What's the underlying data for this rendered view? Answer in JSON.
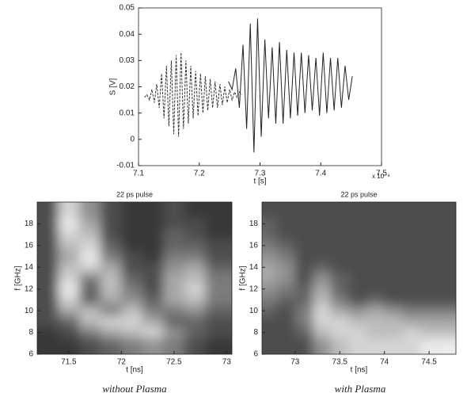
{
  "chart_data": [
    {
      "type": "line",
      "x_label": "t [s]",
      "y_label": "S [V]",
      "x_multiplier": "x 10⁻⁸",
      "xlim": [
        7.1,
        7.5
      ],
      "xticks": [
        7.1,
        7.2,
        7.3,
        7.4,
        7.5
      ],
      "ylim": [
        -0.01,
        0.05
      ],
      "yticks": [
        -0.01,
        0,
        0.01,
        0.02,
        0.03,
        0.04,
        0.05
      ],
      "series": [
        {
          "color": "#333333",
          "line_style": "dashed",
          "x": [
            7.11,
            7.114,
            7.118,
            7.122,
            7.126,
            7.13,
            7.134,
            7.138,
            7.142,
            7.146,
            7.15,
            7.154,
            7.158,
            7.162,
            7.166,
            7.17,
            7.174,
            7.178,
            7.182,
            7.186,
            7.19,
            7.194,
            7.198,
            7.202,
            7.206,
            7.21,
            7.214,
            7.218,
            7.222,
            7.226,
            7.23,
            7.234,
            7.238,
            7.242,
            7.246,
            7.25,
            7.254,
            7.258,
            7.262,
            7.266,
            7.27
          ],
          "values": [
            0.016,
            0.017,
            0.015,
            0.019,
            0.014,
            0.021,
            0.012,
            0.025,
            0.008,
            0.028,
            0.005,
            0.03,
            0.002,
            0.032,
            0.001,
            0.033,
            0.004,
            0.03,
            0.006,
            0.028,
            0.008,
            0.026,
            0.009,
            0.025,
            0.01,
            0.024,
            0.011,
            0.023,
            0.012,
            0.022,
            0.012,
            0.021,
            0.013,
            0.02,
            0.014,
            0.019,
            0.015,
            0.018,
            0.016,
            0.018,
            0.017
          ]
        },
        {
          "color": "#222222",
          "line_style": "solid",
          "x": [
            7.248,
            7.254,
            7.26,
            7.266,
            7.272,
            7.278,
            7.284,
            7.29,
            7.296,
            7.302,
            7.308,
            7.314,
            7.32,
            7.326,
            7.332,
            7.338,
            7.344,
            7.35,
            7.356,
            7.362,
            7.368,
            7.374,
            7.38,
            7.386,
            7.392,
            7.398,
            7.404,
            7.41,
            7.416,
            7.422,
            7.428,
            7.434,
            7.44,
            7.446,
            7.452
          ],
          "values": [
            0.022,
            0.019,
            0.027,
            0.012,
            0.036,
            0.004,
            0.044,
            -0.005,
            0.046,
            0.001,
            0.038,
            0.008,
            0.035,
            0.006,
            0.037,
            0.006,
            0.034,
            0.008,
            0.033,
            0.009,
            0.033,
            0.01,
            0.032,
            0.011,
            0.031,
            0.009,
            0.033,
            0.01,
            0.031,
            0.011,
            0.031,
            0.012,
            0.028,
            0.015,
            0.024
          ]
        }
      ]
    },
    {
      "type": "heatmap",
      "title": "22 ps pulse",
      "x_label": "t [ns]",
      "y_label": "f [GHz]",
      "caption": "without Plasma",
      "xlim": [
        71.2,
        73.05
      ],
      "xticks": [
        71.5,
        72,
        72.5,
        73
      ],
      "ylim": [
        6,
        20
      ],
      "yticks": [
        6,
        8,
        10,
        12,
        14,
        16,
        18
      ],
      "x": [
        71.3,
        71.5,
        71.7,
        71.9,
        72.1,
        72.3,
        72.5,
        72.7,
        72.9
      ],
      "y": [
        19,
        18,
        17,
        16,
        15,
        14,
        13,
        12,
        11,
        10,
        9,
        8,
        7
      ],
      "z": [
        [
          1,
          7,
          4,
          1,
          0,
          0,
          1,
          0,
          0
        ],
        [
          1,
          8,
          5,
          1,
          0,
          0,
          1,
          1,
          0
        ],
        [
          1,
          7,
          6,
          1,
          0,
          0,
          2,
          1,
          0
        ],
        [
          1,
          6,
          7,
          2,
          0,
          0,
          2,
          2,
          1
        ],
        [
          1,
          5,
          8,
          3,
          1,
          0,
          3,
          3,
          1
        ],
        [
          1,
          6,
          7,
          5,
          1,
          1,
          4,
          5,
          2
        ],
        [
          1,
          7,
          3,
          6,
          2,
          1,
          5,
          6,
          3
        ],
        [
          1,
          8,
          2,
          6,
          3,
          1,
          5,
          7,
          3
        ],
        [
          1,
          7,
          2,
          5,
          4,
          2,
          5,
          6,
          3
        ],
        [
          1,
          5,
          6,
          3,
          6,
          3,
          3,
          4,
          2
        ],
        [
          1,
          2,
          6,
          7,
          7,
          5,
          2,
          2,
          1
        ],
        [
          0,
          1,
          3,
          5,
          6,
          7,
          4,
          2,
          1
        ],
        [
          0,
          0,
          1,
          2,
          3,
          4,
          3,
          1,
          0
        ]
      ]
    },
    {
      "type": "heatmap",
      "title": "22 ps pulse",
      "x_label": "t [ns]",
      "y_label": "f [GHz]",
      "caption": "with Plasma",
      "xlim": [
        72.63,
        74.8
      ],
      "xticks": [
        73,
        73.5,
        74,
        74.5
      ],
      "ylim": [
        6,
        20
      ],
      "yticks": [
        6,
        8,
        10,
        12,
        14,
        16,
        18
      ],
      "x": [
        72.7,
        72.9,
        73.1,
        73.3,
        73.5,
        73.7,
        73.9,
        74.1,
        74.3,
        74.5,
        74.7
      ],
      "y": [
        19,
        18,
        17,
        16,
        15,
        14,
        13,
        12,
        11,
        10,
        9,
        8,
        7
      ],
      "z": [
        [
          1,
          1,
          1,
          1,
          1,
          1,
          1,
          1,
          1,
          1,
          1
        ],
        [
          2,
          1,
          1,
          1,
          1,
          1,
          1,
          1,
          1,
          1,
          1
        ],
        [
          2,
          1,
          1,
          1,
          1,
          1,
          1,
          1,
          1,
          1,
          1
        ],
        [
          3,
          2,
          1,
          1,
          1,
          1,
          1,
          1,
          1,
          1,
          1
        ],
        [
          4,
          3,
          1,
          1,
          1,
          1,
          1,
          1,
          1,
          1,
          1
        ],
        [
          5,
          4,
          1,
          2,
          1,
          1,
          1,
          1,
          1,
          1,
          1
        ],
        [
          5,
          4,
          1,
          4,
          2,
          1,
          1,
          1,
          1,
          1,
          1
        ],
        [
          4,
          3,
          2,
          5,
          2,
          1,
          1,
          1,
          1,
          1,
          1
        ],
        [
          3,
          2,
          2,
          6,
          3,
          1,
          2,
          1,
          1,
          1,
          1
        ],
        [
          2,
          1,
          3,
          7,
          5,
          4,
          5,
          4,
          3,
          3,
          3
        ],
        [
          1,
          1,
          3,
          7,
          7,
          6,
          6,
          6,
          5,
          5,
          5
        ],
        [
          1,
          1,
          2,
          6,
          7,
          7,
          6,
          6,
          7,
          6,
          6
        ],
        [
          1,
          1,
          1,
          4,
          6,
          7,
          7,
          7,
          7,
          8,
          8
        ]
      ]
    }
  ]
}
